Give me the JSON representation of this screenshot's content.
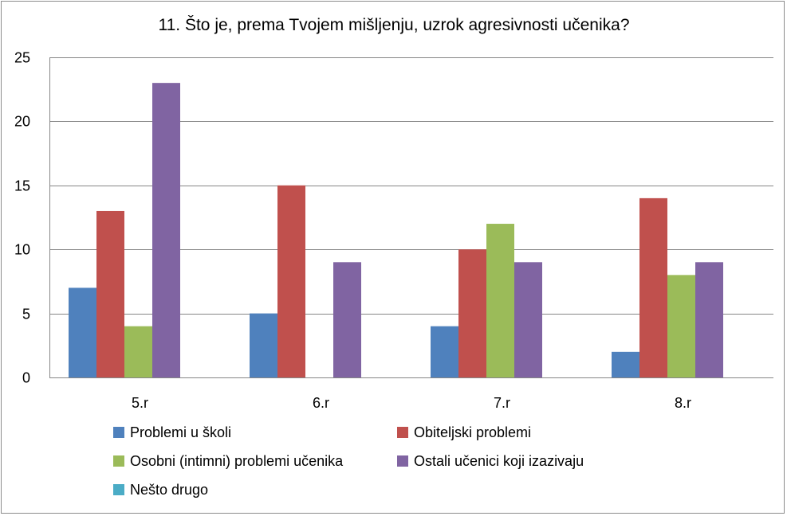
{
  "chart_data": {
    "type": "bar",
    "title": "11. Što je, prema Tvojem mišljenju, uzrok agresivnosti učenika?",
    "categories": [
      "5.r",
      "6.r",
      "7.r",
      "8.r"
    ],
    "series": [
      {
        "name": "Problemi u školi",
        "color": "#4f81bd",
        "values": [
          7,
          5,
          4,
          2
        ]
      },
      {
        "name": "Obiteljski problemi",
        "color": "#c0504d",
        "values": [
          13,
          15,
          10,
          14
        ]
      },
      {
        "name": "Osobni (intimni) problemi učenika",
        "color": "#9bbb59",
        "values": [
          4,
          0,
          12,
          8
        ]
      },
      {
        "name": "Ostali učenici koji izazivaju",
        "color": "#8064a2",
        "values": [
          23,
          9,
          9,
          9
        ]
      },
      {
        "name": "Nešto drugo",
        "color": "#4bacc6",
        "values": [
          0,
          0,
          0,
          0
        ]
      }
    ],
    "ylim": [
      0,
      25
    ],
    "yticks": [
      0,
      5,
      10,
      15,
      20,
      25
    ],
    "grid": true,
    "legend_position": "bottom"
  }
}
